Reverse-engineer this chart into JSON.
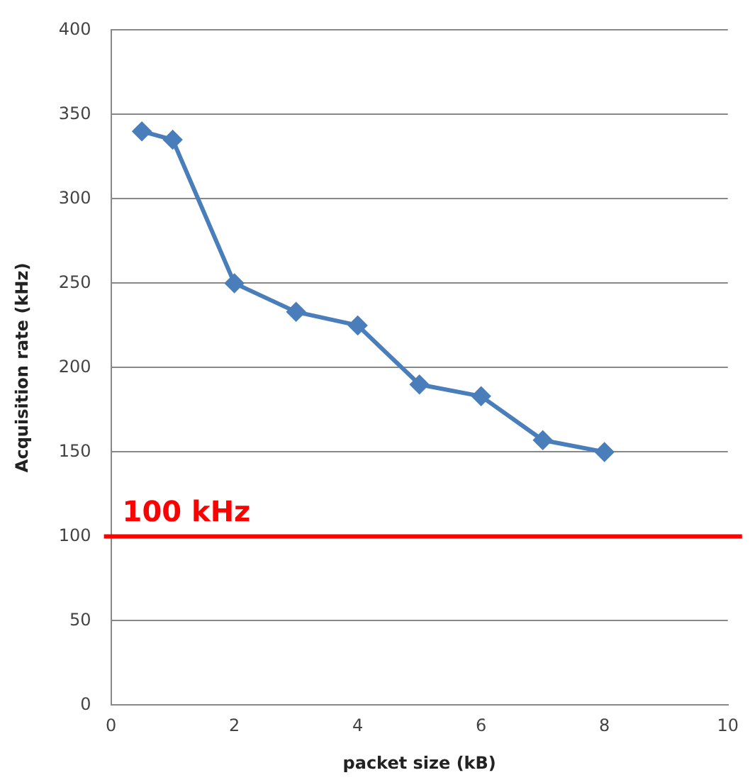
{
  "chart_data": {
    "type": "line",
    "xlabel": "packet size (kB)",
    "ylabel": "Acquisition rate (kHz)",
    "x": [
      0.5,
      1,
      2,
      3,
      4,
      5,
      6,
      7,
      8
    ],
    "series": [
      {
        "color": "#4a7ebb",
        "values": [
          340,
          335,
          250,
          233,
          225,
          190,
          183,
          157,
          150
        ]
      }
    ],
    "xlim": [
      0,
      10
    ],
    "xticks": [
      0,
      2,
      4,
      6,
      8,
      10
    ],
    "ylim": [
      0,
      400
    ],
    "yticks": [
      0,
      50,
      100,
      150,
      200,
      250,
      300,
      350,
      400
    ],
    "grid": "y",
    "legend": false,
    "marker": "diamond",
    "line_style": "solid",
    "ref_lines": [
      {
        "axis": "y",
        "value": 100,
        "label": "100 kHz",
        "color": "#ff0000"
      }
    ]
  }
}
